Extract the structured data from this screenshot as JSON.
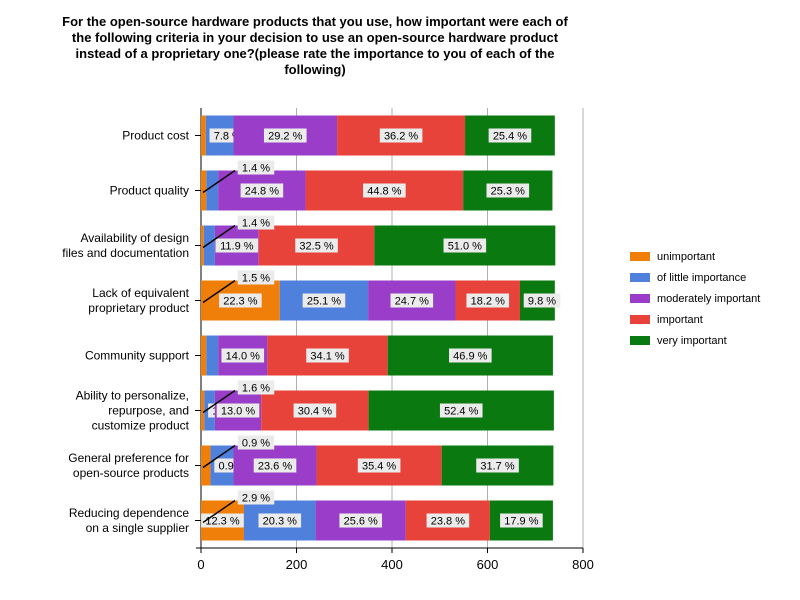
{
  "chart_data": {
    "type": "bar",
    "orientation": "horizontal",
    "stacked": true,
    "title": "For the open-source hardware products that you use, how important were each of the following criteria in your decision to use an open-source hardware product instead of a proprietary one?(please rate the importance to you of each of the following)",
    "xlim": [
      0,
      800
    ],
    "x_ticks": [
      "0",
      "200",
      "400",
      "600",
      "800"
    ],
    "grid": "vertical",
    "legend_position": "right",
    "categories": [
      "Product cost",
      "Product quality",
      "Availability of design files and documentation",
      "Lack of equivalent proprietary product",
      "Community support",
      "Ability to personalize, repurpose, and customize product",
      "General preference for open-source products",
      "Reducing dependence on a single supplier"
    ],
    "category_lines": [
      [
        "Product cost"
      ],
      [
        "Product quality"
      ],
      [
        "Availability of design",
        "files and documentation"
      ],
      [
        "Lack of equivalent",
        "proprietary product"
      ],
      [
        "Community support"
      ],
      [
        "Ability to personalize,",
        "repurpose, and",
        "customize product"
      ],
      [
        "General preference for",
        "open-source products"
      ],
      [
        "Reducing dependence",
        "on a single supplier"
      ]
    ],
    "series": [
      {
        "name": "unimportant",
        "color": "#f07f09",
        "values": [
          10,
          11,
          6,
          165,
          11,
          7,
          20,
          90
        ],
        "labels": [
          "",
          "1.4 %",
          "1.4 %",
          "22.3 %",
          "",
          "",
          "",
          "12.3 %"
        ]
      },
      {
        "name": "of little importance",
        "color": "#4f81dc",
        "values": [
          58,
          25,
          23,
          185,
          25,
          22,
          48,
          150
        ],
        "labels": [
          "7.8 %",
          "",
          "",
          "25.1 %",
          "",
          "1.6 %",
          "0.9 %",
          "20.3 %"
        ]
      },
      {
        "name": "moderately important",
        "color": "#9a3dc9",
        "values": [
          217,
          183,
          92,
          183,
          103,
          97,
          174,
          189
        ],
        "labels": [
          "29.2 %",
          "24.8 %",
          "11.9 %",
          "24.7 %",
          "14.0 %",
          "13.0 %",
          "23.6 %",
          "25.6 %"
        ]
      },
      {
        "name": "important",
        "color": "#e8433a",
        "values": [
          268,
          330,
          242,
          135,
          252,
          225,
          262,
          176
        ],
        "labels": [
          "36.2 %",
          "44.8 %",
          "32.5 %",
          "18.2 %",
          "34.1 %",
          "30.4 %",
          "35.4 %",
          "23.8 %"
        ]
      },
      {
        "name": "very important",
        "color": "#0a7a10",
        "values": [
          188,
          187,
          379,
          73,
          346,
          388,
          234,
          132
        ],
        "labels": [
          "25.4 %",
          "25.3 %",
          "51.0 %",
          "9.8 %",
          "46.9 %",
          "52.4 %",
          "31.7 %",
          "17.9 %"
        ]
      }
    ],
    "leader_labels": [
      {
        "text": "1.4 %",
        "category": 1
      },
      {
        "text": "1.4 %",
        "category": 2
      },
      {
        "text": "1.5 %",
        "category": 3
      },
      {
        "text": "1.6 %",
        "category": 5
      },
      {
        "text": "0.9 %",
        "category": 6
      },
      {
        "text": "2.9 %",
        "category": 7
      }
    ]
  }
}
